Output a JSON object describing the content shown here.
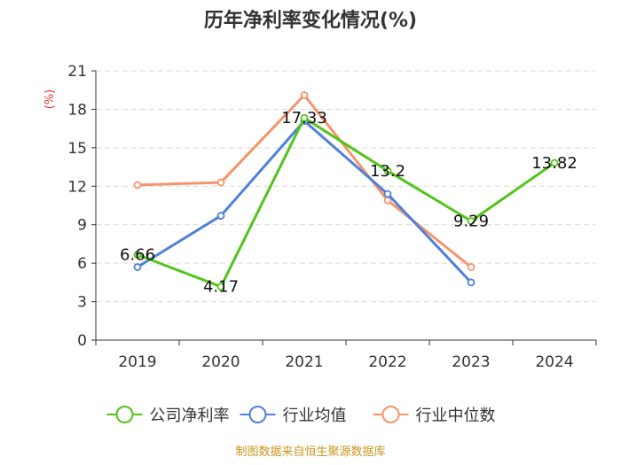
{
  "chart_data": {
    "type": "line",
    "title": "历年净利率变化情况(%)",
    "ylabel": "(%)",
    "xlabel": "",
    "categories": [
      "2019",
      "2020",
      "2021",
      "2022",
      "2023",
      "2024"
    ],
    "ylim": [
      0,
      21
    ],
    "yticks": [
      0,
      3,
      6,
      9,
      12,
      15,
      18,
      21
    ],
    "grid": true,
    "legend_position": "bottom",
    "series": [
      {
        "name": "公司净利率",
        "color": "#52c41a",
        "values": [
          6.66,
          4.17,
          17.33,
          13.2,
          9.29,
          13.82
        ],
        "labels": [
          "6.66",
          "4.17",
          "17.33",
          "13.2",
          "9.29",
          "13.82"
        ]
      },
      {
        "name": "行业均值",
        "color": "#4f7fdc",
        "values": [
          5.7,
          9.7,
          17.1,
          11.4,
          4.5,
          null
        ],
        "labels": []
      },
      {
        "name": "行业中位数",
        "color": "#f5946a",
        "values": [
          12.1,
          12.3,
          19.1,
          10.9,
          5.7,
          null
        ],
        "labels": []
      }
    ]
  },
  "source": "制图数据来自恒生聚源数据库"
}
